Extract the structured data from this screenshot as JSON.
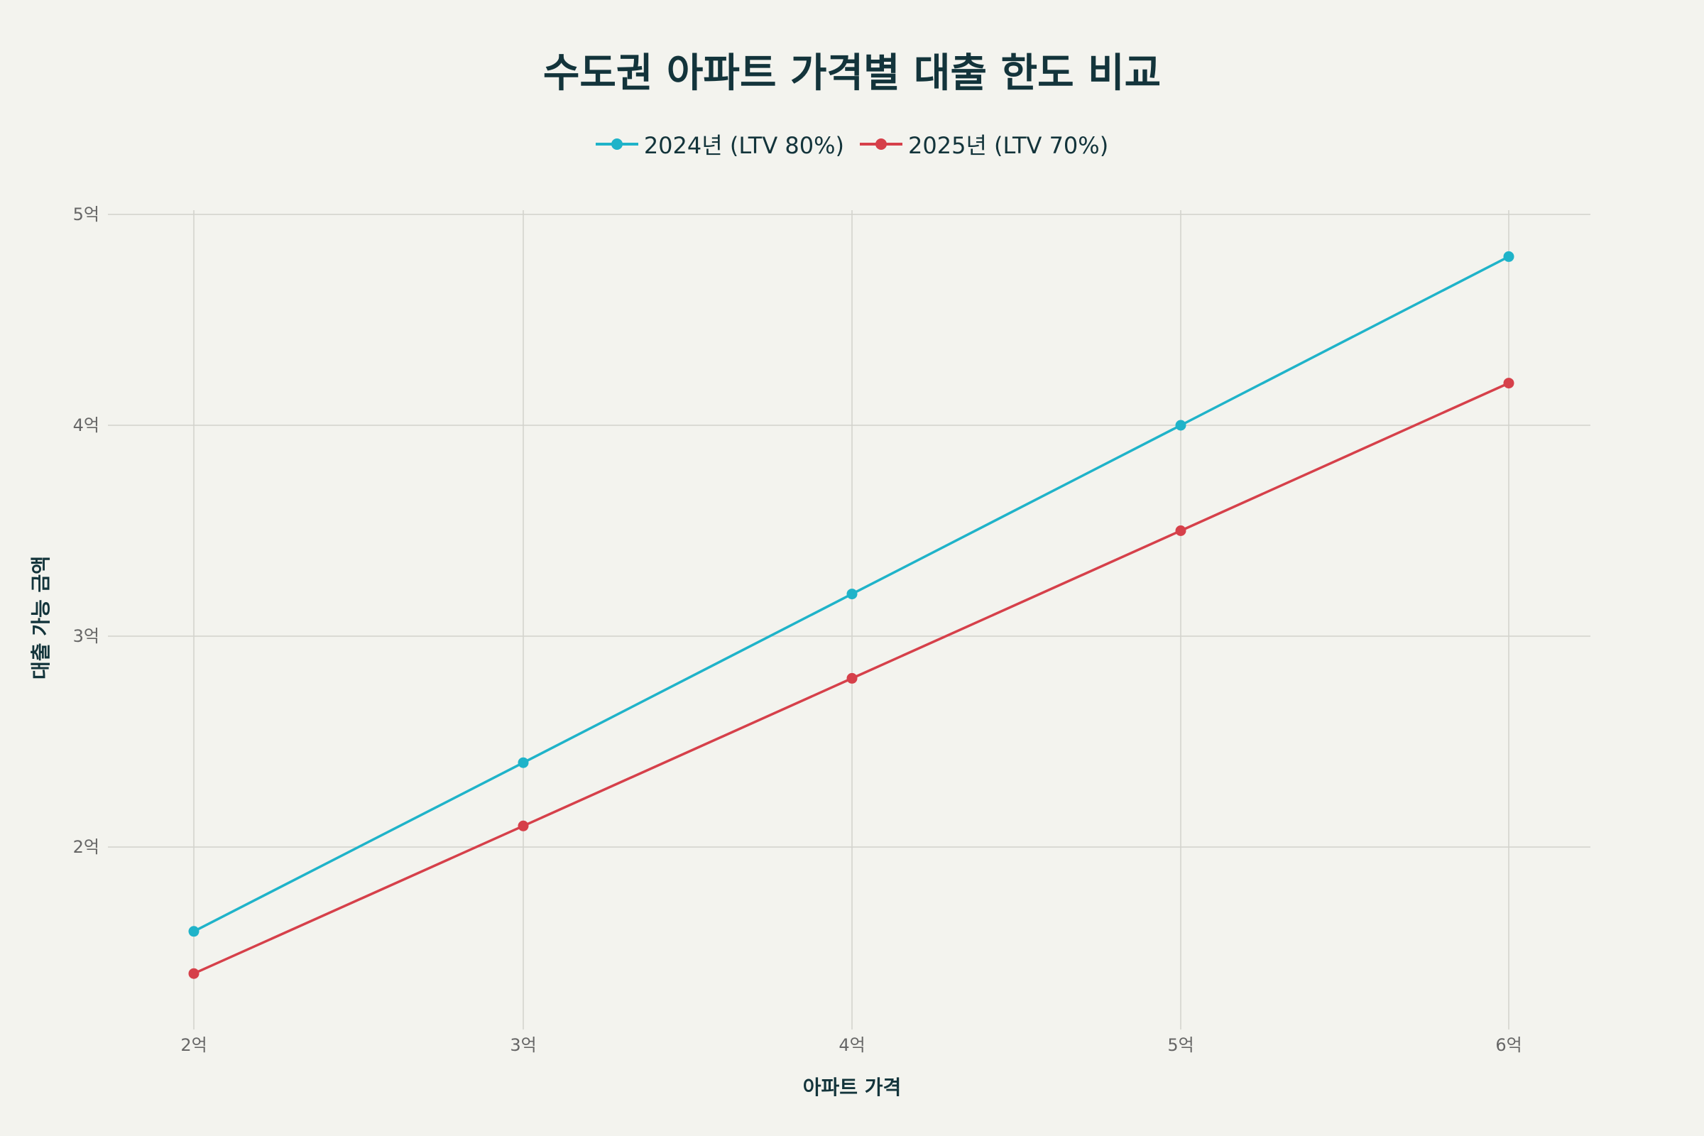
{
  "chart_data": {
    "type": "line",
    "title": "수도권 아파트 가격별 대출 한도 비교",
    "xlabel": "아파트 가격",
    "ylabel": "대출 가능 금액",
    "categories": [
      "2억",
      "3억",
      "4억",
      "5억",
      "6억"
    ],
    "x": [
      2,
      3,
      4,
      5,
      6
    ],
    "y_ticks": [
      2,
      3,
      4,
      5
    ],
    "y_tick_labels": [
      "2억",
      "3억",
      "4억",
      "5억"
    ],
    "ylim": [
      1.3,
      5.0
    ],
    "grid": true,
    "legend_position": "top-center",
    "series": [
      {
        "name": "2024년 (LTV 80%)",
        "values": [
          1.6,
          2.4,
          3.2,
          4.0,
          4.8
        ],
        "color": "#1fb3c9"
      },
      {
        "name": "2025년 (LTV 70%)",
        "values": [
          1.4,
          2.1,
          2.8,
          3.5,
          4.2
        ],
        "color": "#d6404a"
      }
    ]
  }
}
